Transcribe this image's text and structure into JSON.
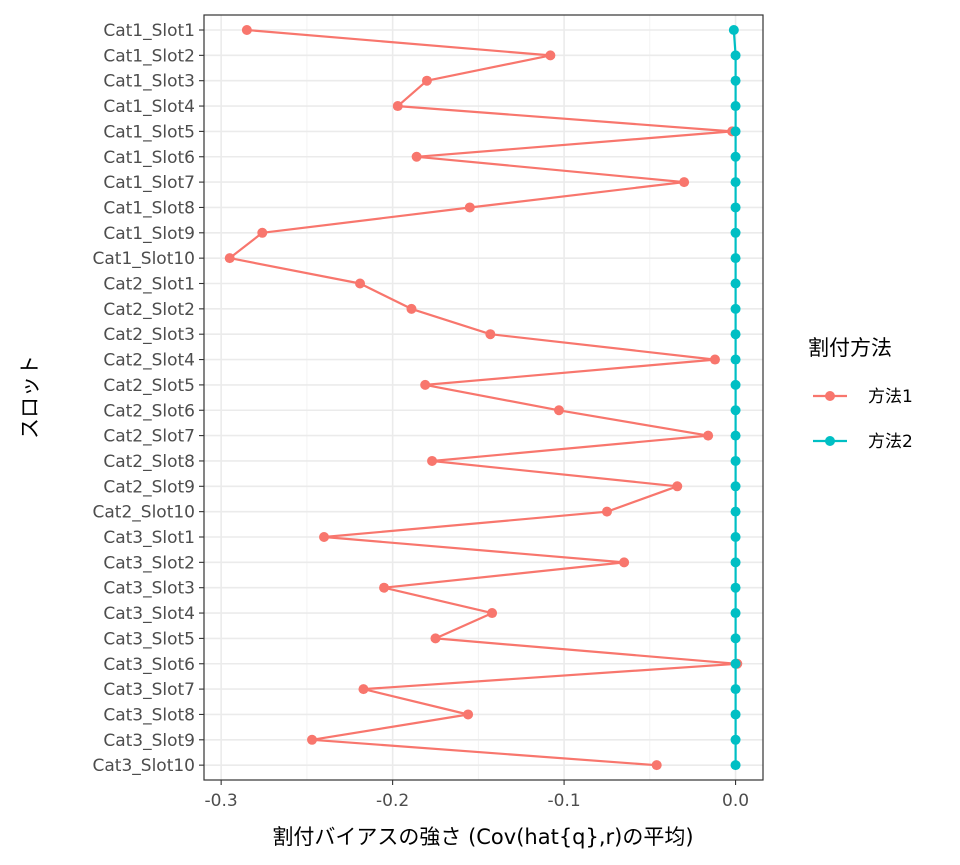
{
  "chart_data": {
    "type": "line",
    "orientation": "horizontal",
    "xlabel": "割付バイアスの強さ (Cov(hat{q},r)の平均)",
    "ylabel": "スロット",
    "xlim": [
      -0.31,
      0.016
    ],
    "x_ticks": [
      -0.3,
      -0.2,
      -0.1,
      0.0
    ],
    "x_tick_labels": [
      "-0.3",
      "-0.2",
      "-0.1",
      "0.0"
    ],
    "grid": true,
    "legend_title": "割付方法",
    "legend_position": "right",
    "categories": [
      "Cat1_Slot1",
      "Cat1_Slot2",
      "Cat1_Slot3",
      "Cat1_Slot4",
      "Cat1_Slot5",
      "Cat1_Slot6",
      "Cat1_Slot7",
      "Cat1_Slot8",
      "Cat1_Slot9",
      "Cat1_Slot10",
      "Cat2_Slot1",
      "Cat2_Slot2",
      "Cat2_Slot3",
      "Cat2_Slot4",
      "Cat2_Slot5",
      "Cat2_Slot6",
      "Cat2_Slot7",
      "Cat2_Slot8",
      "Cat2_Slot9",
      "Cat2_Slot10",
      "Cat3_Slot1",
      "Cat3_Slot2",
      "Cat3_Slot3",
      "Cat3_Slot4",
      "Cat3_Slot5",
      "Cat3_Slot6",
      "Cat3_Slot7",
      "Cat3_Slot8",
      "Cat3_Slot9",
      "Cat3_Slot10"
    ],
    "series": [
      {
        "name": "方法1",
        "color": "#F8766D",
        "values": [
          -0.285,
          -0.108,
          -0.18,
          -0.197,
          -0.002,
          -0.186,
          -0.03,
          -0.155,
          -0.276,
          -0.295,
          -0.219,
          -0.189,
          -0.143,
          -0.012,
          -0.181,
          -0.103,
          -0.016,
          -0.177,
          -0.034,
          -0.075,
          -0.24,
          -0.065,
          -0.205,
          -0.142,
          -0.175,
          0.001,
          -0.217,
          -0.156,
          -0.247,
          -0.046
        ]
      },
      {
        "name": "方法2",
        "color": "#00BFC4",
        "values": [
          -0.001,
          0.0,
          0.0,
          0.0,
          0.0,
          0.0,
          0.0,
          0.0,
          0.0,
          0.0,
          0.0,
          0.0,
          0.0,
          0.0,
          0.0,
          0.0,
          0.0,
          0.0,
          0.0,
          0.0,
          0.0,
          0.0,
          0.0,
          0.0,
          0.0,
          0.0,
          0.0,
          0.0,
          0.0,
          0.0
        ]
      }
    ]
  }
}
